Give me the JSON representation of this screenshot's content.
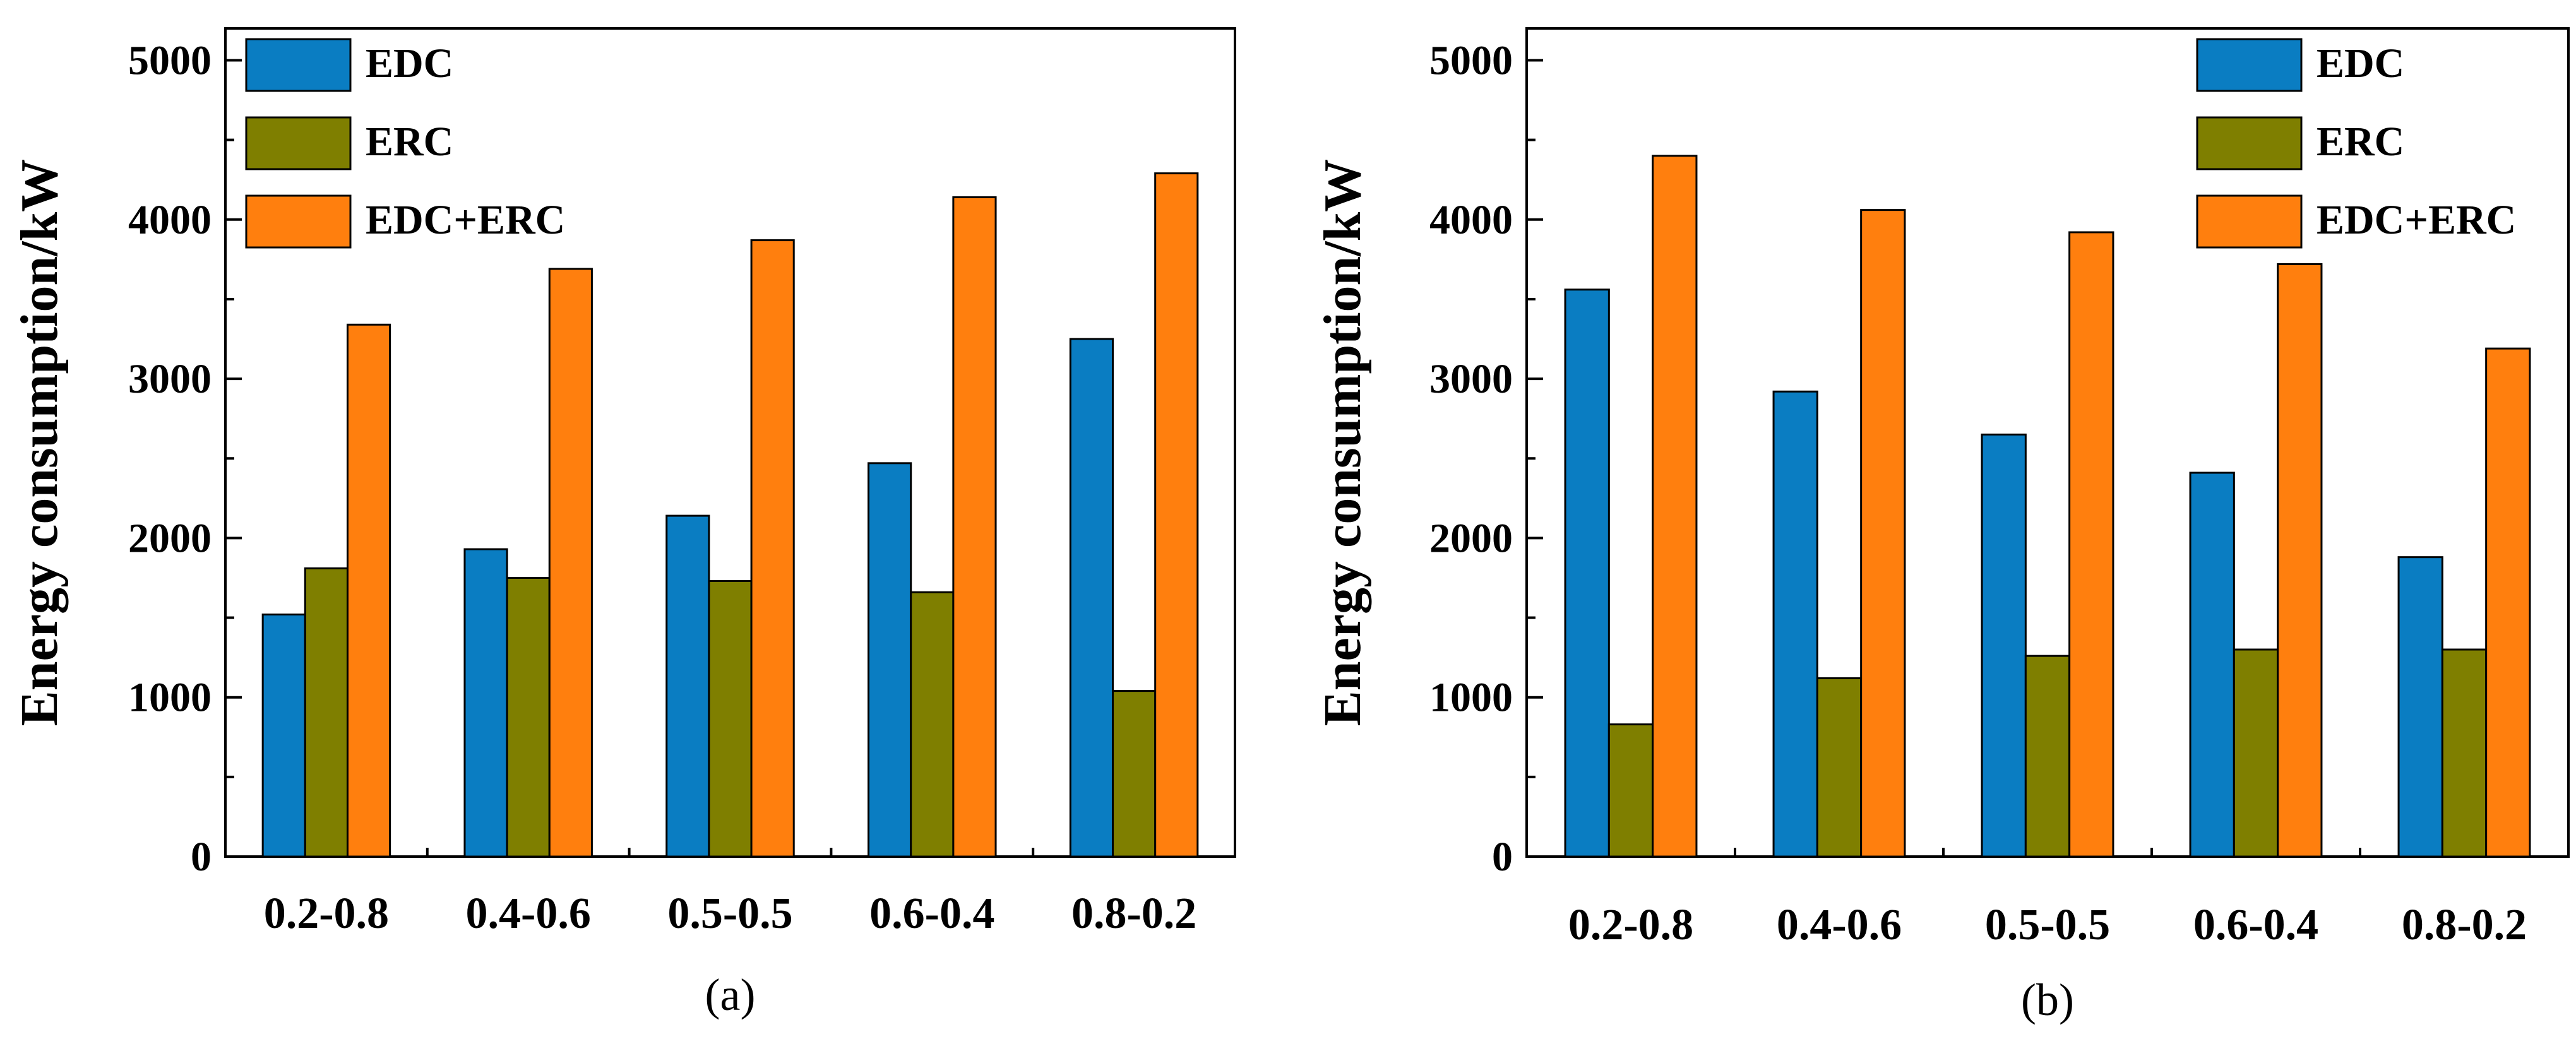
{
  "chart_data": [
    {
      "type": "bar",
      "panel_label": "(a)",
      "ylabel": "Energy consumption/kW",
      "xlabel": "",
      "ylim": [
        0,
        5200
      ],
      "yticks": [
        0,
        1000,
        2000,
        3000,
        4000,
        5000
      ],
      "categories": [
        "0.2-0.8",
        "0.4-0.6",
        "0.5-0.5",
        "0.6-0.4",
        "0.8-0.2"
      ],
      "legend_position": "top-left",
      "series": [
        {
          "name": "EDC",
          "color": "#0a7dc2",
          "values": [
            1520,
            1930,
            2140,
            2470,
            3250
          ]
        },
        {
          "name": "ERC",
          "color": "#7f7f00",
          "values": [
            1810,
            1750,
            1730,
            1660,
            1040
          ]
        },
        {
          "name": "EDC+ERC",
          "color": "#ff7f0e",
          "values": [
            3340,
            3690,
            3870,
            4140,
            4290
          ]
        }
      ]
    },
    {
      "type": "bar",
      "panel_label": "(b)",
      "ylabel": "Energy consumption/kW",
      "xlabel": "",
      "ylim": [
        0,
        5200
      ],
      "yticks": [
        0,
        1000,
        2000,
        3000,
        4000,
        5000
      ],
      "categories": [
        "0.2-0.8",
        "0.4-0.6",
        "0.5-0.5",
        "0.6-0.4",
        "0.8-0.2"
      ],
      "legend_position": "top-right",
      "series": [
        {
          "name": "EDC",
          "color": "#0a7dc2",
          "values": [
            3560,
            2920,
            2650,
            2410,
            1880
          ]
        },
        {
          "name": "ERC",
          "color": "#7f7f00",
          "values": [
            830,
            1120,
            1260,
            1300,
            1300
          ]
        },
        {
          "name": "EDC+ERC",
          "color": "#ff7f0e",
          "values": [
            4400,
            4060,
            3920,
            3720,
            3190
          ]
        }
      ]
    }
  ]
}
